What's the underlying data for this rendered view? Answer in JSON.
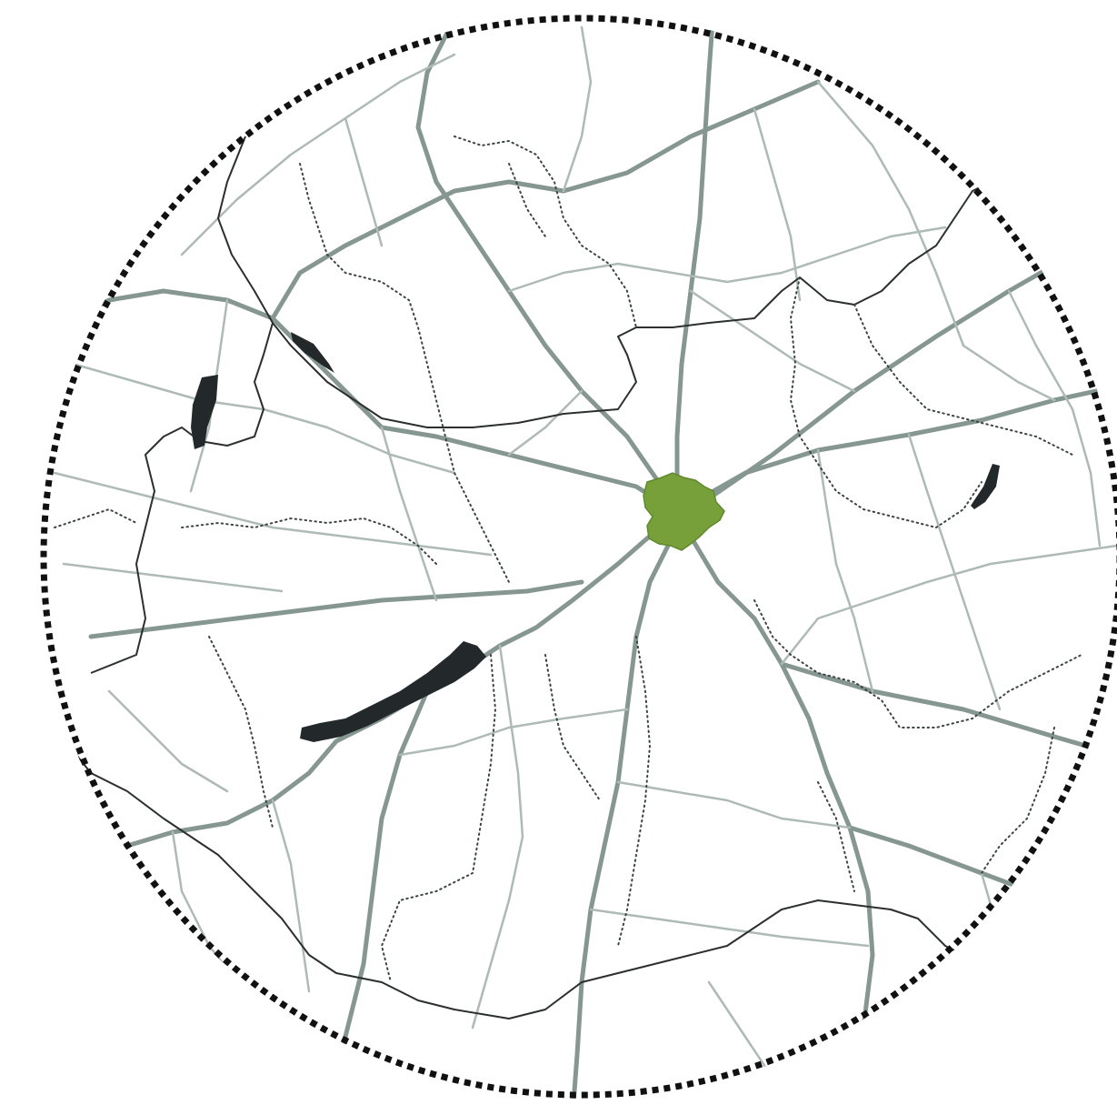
{
  "map": {
    "style": "road network, circular extent, no labels",
    "colors": {
      "background": "#ffffff",
      "road": "#93a29d",
      "road_major": "#869691",
      "road_minor": "#aebab6",
      "border": "#2b2f30",
      "boundary_dotted": "#3d4446",
      "water": "#23282b",
      "highlight_fill": "#77a03a",
      "highlight_stroke": "#5f8a2c",
      "frame": "#111111"
    },
    "frame_icon": "dotted-circle",
    "highlighted_area": "green-city-shape",
    "lakes": [
      "large-elongated-lake",
      "small-lake-west",
      "small-lake-northwest",
      "small-lake-east"
    ]
  }
}
